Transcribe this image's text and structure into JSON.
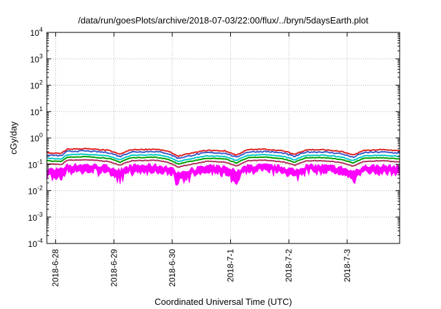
{
  "chart_data": {
    "type": "line",
    "title": "/data/run/goesPlots/archive/2018-07-03/22:00/flux/../bryn/5daysEarth.plot",
    "xlabel": "Coordinated Universal Time (UTC)",
    "ylabel": "cGy/day",
    "yscale": "log",
    "ylim": [
      0.0001,
      10000
    ],
    "xlim_days": [
      -0.15,
      5.9
    ],
    "grid": true,
    "y_ticks": [
      {
        "base": "10",
        "exp": "-4"
      },
      {
        "base": "10",
        "exp": "-3"
      },
      {
        "base": "10",
        "exp": "-2"
      },
      {
        "base": "10",
        "exp": "-1"
      },
      {
        "base": "10",
        "exp": "0"
      },
      {
        "base": "10",
        "exp": "1"
      },
      {
        "base": "10",
        "exp": "2"
      },
      {
        "base": "10",
        "exp": "3"
      },
      {
        "base": "10",
        "exp": "4"
      }
    ],
    "x_ticks": [
      "2018-6-28",
      "2018-6-29",
      "2018-6-30",
      "2018-7-1",
      "2018-7-2",
      "2018-7-3"
    ],
    "series": [
      {
        "color": "#ff00ff",
        "base": 0.085,
        "noise": 0.35,
        "style": "band",
        "dips": true
      },
      {
        "color": "#b0305a",
        "base": 0.13,
        "noise": 0.05
      },
      {
        "color": "#00a000",
        "base": 0.17,
        "noise": 0.05
      },
      {
        "color": "#00c8c8",
        "base": 0.21,
        "noise": 0.06
      },
      {
        "color": "#3a5bcc",
        "base": 0.28,
        "noise": 0.1
      },
      {
        "color": "#e02020",
        "base": 0.34,
        "noise": 0.08
      }
    ],
    "envelope": {
      "x_days": [
        -0.15,
        0.1,
        0.2,
        0.5,
        0.9,
        1.1,
        1.3,
        1.7,
        1.9,
        2.1,
        2.3,
        2.6,
        2.9,
        3.1,
        3.3,
        3.6,
        3.9,
        4.1,
        4.3,
        4.6,
        4.9,
        5.1,
        5.3,
        5.6,
        5.9
      ],
      "factor": [
        0.8,
        0.75,
        1.1,
        1.15,
        1.0,
        0.7,
        1.05,
        1.1,
        0.95,
        0.6,
        0.75,
        1.0,
        0.95,
        0.65,
        1.05,
        1.1,
        0.95,
        0.7,
        1.05,
        1.05,
        0.9,
        0.65,
        1.0,
        1.05,
        0.95
      ]
    }
  }
}
